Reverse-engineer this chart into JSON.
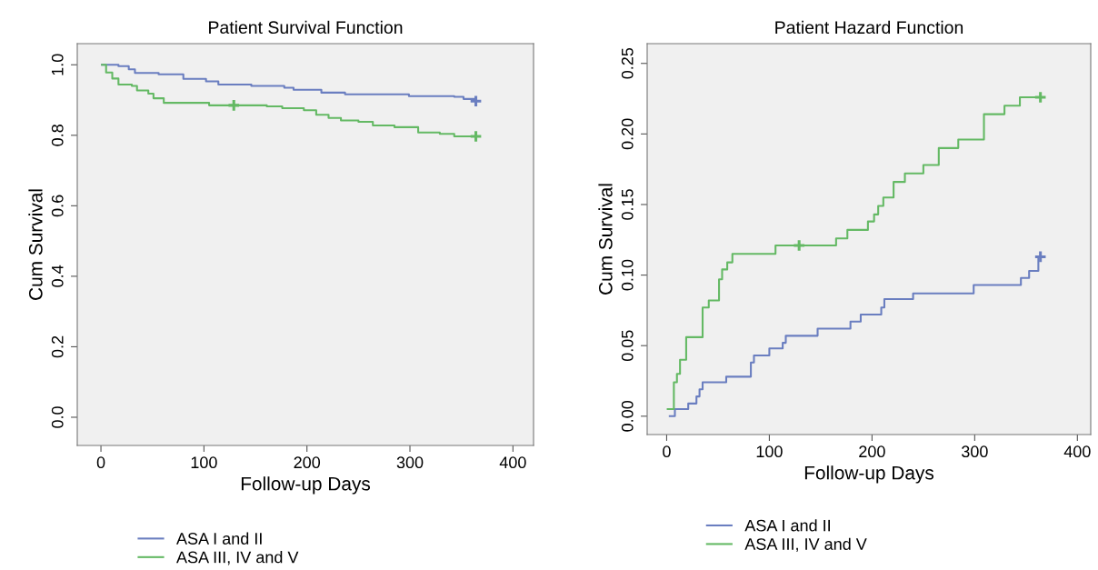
{
  "chart_data": [
    {
      "type": "step",
      "title": "Patient Survival Function",
      "xlabel": "Follow-up Days",
      "ylabel": "Cum Survival",
      "xlim": [
        -23,
        420
      ],
      "xticks": [
        0,
        100,
        200,
        300,
        400
      ],
      "ylim": [
        -0.08,
        1.06
      ],
      "yticks": [
        {
          "value": 0,
          "label": "0.0"
        },
        {
          "value": 0.2,
          "label": "0.2"
        },
        {
          "value": 0.4,
          "label": "0.4"
        },
        {
          "value": 0.6,
          "label": "0.6"
        },
        {
          "value": 0.8,
          "label": "0.8"
        },
        {
          "value": 1,
          "label": "1.0"
        }
      ],
      "grid": false,
      "legend": "bottom",
      "series": [
        {
          "name": "ASA I and II",
          "color": "#6a7ec0",
          "x": [
            1,
            17,
            27,
            33,
            56,
            80,
            102,
            114,
            146,
            178,
            187,
            214,
            237,
            299,
            343,
            352,
            364
          ],
          "values": [
            1.0,
            0.996,
            0.987,
            0.977,
            0.973,
            0.96,
            0.953,
            0.944,
            0.94,
            0.935,
            0.929,
            0.921,
            0.916,
            0.911,
            0.909,
            0.903,
            0.897
          ]
        },
        {
          "name": "ASA III, IV and V",
          "color": "#64b964",
          "x": [
            1,
            5,
            11,
            17,
            30,
            35,
            46,
            51,
            61,
            105,
            161,
            176,
            197,
            209,
            221,
            233,
            250,
            264,
            285,
            308,
            329,
            343,
            364
          ],
          "values": [
            1.0,
            0.978,
            0.961,
            0.944,
            0.94,
            0.927,
            0.918,
            0.905,
            0.892,
            0.885,
            0.882,
            0.877,
            0.871,
            0.858,
            0.849,
            0.842,
            0.838,
            0.828,
            0.823,
            0.808,
            0.804,
            0.797,
            0.797
          ]
        },
        {
          "type": "scatter",
          "marker": "cross",
          "color": "#6a7ec0",
          "x": [
            364
          ],
          "values": [
            0.897
          ]
        },
        {
          "type": "scatter",
          "marker": "cross",
          "color": "#64b964",
          "x": [
            129,
            364
          ],
          "values": [
            0.885,
            0.797
          ]
        }
      ]
    },
    {
      "type": "step",
      "title": "Patient Hazard Function",
      "xlabel": "Follow-up Days",
      "ylabel": "Cum Survival",
      "xlim": [
        -19,
        413
      ],
      "xticks": [
        0,
        100,
        200,
        300,
        400
      ],
      "ylim": [
        -0.013,
        0.264
      ],
      "yticks": [
        {
          "value": 0,
          "label": "0.00"
        },
        {
          "value": 0.05,
          "label": "0.05"
        },
        {
          "value": 0.1,
          "label": "0.10"
        },
        {
          "value": 0.15,
          "label": "0.15"
        },
        {
          "value": 0.2,
          "label": "0.20"
        },
        {
          "value": 0.25,
          "label": "0.25"
        }
      ],
      "grid": false,
      "legend": "bottom",
      "series": [
        {
          "name": "ASA I and II",
          "color": "#6a7ec0",
          "x": [
            3,
            8,
            21,
            29,
            32,
            35,
            58,
            82,
            85,
            100,
            113,
            116,
            147,
            179,
            189,
            209,
            212,
            240,
            299,
            345,
            353,
            362,
            364
          ],
          "values": [
            0.0,
            0.005,
            0.009,
            0.014,
            0.019,
            0.024,
            0.028,
            0.038,
            0.043,
            0.048,
            0.052,
            0.057,
            0.062,
            0.067,
            0.072,
            0.077,
            0.083,
            0.087,
            0.093,
            0.098,
            0.103,
            0.113,
            0.113
          ]
        },
        {
          "name": "ASA III, IV and V",
          "color": "#64b964",
          "x": [
            1,
            7,
            10,
            13,
            19,
            35,
            41,
            51,
            54,
            59,
            64,
            106,
            165,
            176,
            196,
            202,
            206,
            211,
            221,
            232,
            250,
            265,
            284,
            309,
            329,
            344,
            364
          ],
          "values": [
            0.005,
            0.024,
            0.03,
            0.04,
            0.056,
            0.077,
            0.082,
            0.097,
            0.104,
            0.109,
            0.115,
            0.121,
            0.126,
            0.132,
            0.138,
            0.143,
            0.149,
            0.155,
            0.166,
            0.172,
            0.178,
            0.19,
            0.196,
            0.214,
            0.22,
            0.226,
            0.226
          ]
        },
        {
          "type": "scatter",
          "marker": "cross",
          "color": "#6a7ec0",
          "x": [
            364
          ],
          "values": [
            0.113
          ]
        },
        {
          "type": "scatter",
          "marker": "cross",
          "color": "#64b964",
          "x": [
            129,
            364
          ],
          "values": [
            0.121,
            0.226
          ]
        }
      ]
    }
  ]
}
